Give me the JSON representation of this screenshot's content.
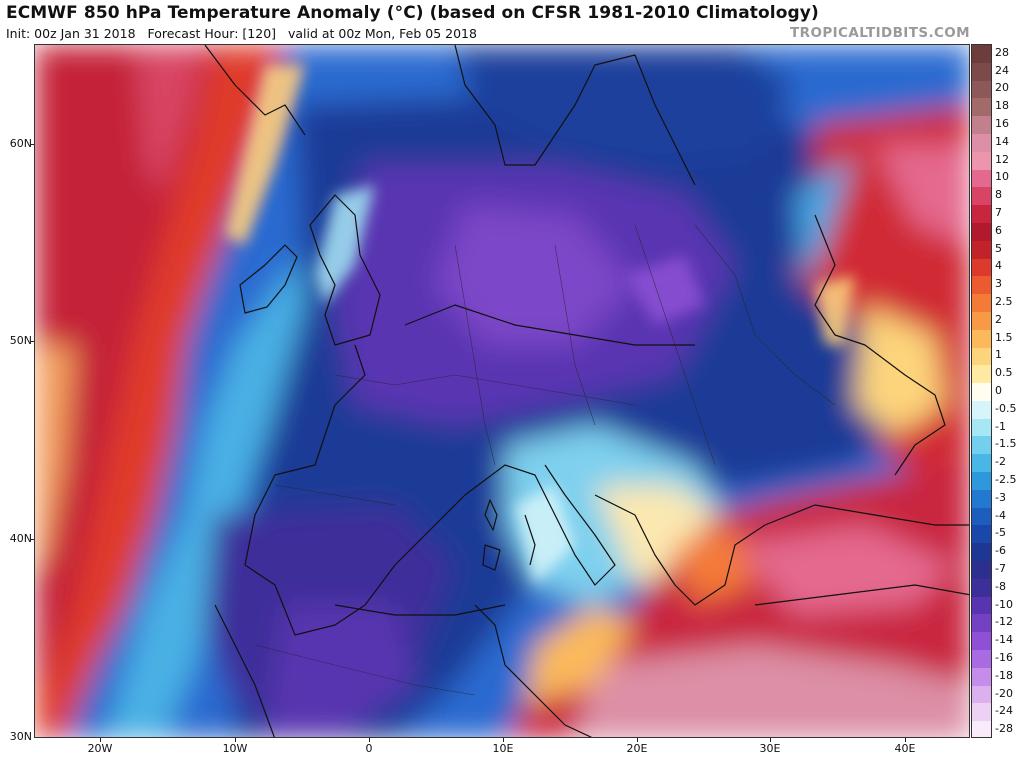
{
  "header": {
    "title": "ECMWF 850 hPa Temperature Anomaly (°C) (based on CFSR 1981-2010 Climatology)",
    "init": "Init: 00z Jan 31 2018",
    "forecast_hour": "Forecast Hour: [120]",
    "valid": "valid at 00z Mon, Feb 05 2018",
    "brand": "TROPICALTIDBITS.COM"
  },
  "axes": {
    "lat_labels": [
      "60N",
      "50N",
      "40N",
      "30N"
    ],
    "lon_labels": [
      "20W",
      "10W",
      "0",
      "10E",
      "20E",
      "30E",
      "40E"
    ]
  },
  "legend": {
    "items": [
      {
        "label": "28",
        "color": "#6d3d3d"
      },
      {
        "label": "24",
        "color": "#7d4a4a"
      },
      {
        "label": "20",
        "color": "#8e5858"
      },
      {
        "label": "18",
        "color": "#a36a6a"
      },
      {
        "label": "16",
        "color": "#c27f8c"
      },
      {
        "label": "14",
        "color": "#dc8fa6"
      },
      {
        "label": "12",
        "color": "#ec95ad"
      },
      {
        "label": "10",
        "color": "#e4698e"
      },
      {
        "label": "8",
        "color": "#d84463"
      },
      {
        "label": "7",
        "color": "#c9253f"
      },
      {
        "label": "6",
        "color": "#b01a2c"
      },
      {
        "label": "5",
        "color": "#c2222a"
      },
      {
        "label": "4",
        "color": "#dc3a2b"
      },
      {
        "label": "3",
        "color": "#ec5b30"
      },
      {
        "label": "2.5",
        "color": "#f47a38"
      },
      {
        "label": "2",
        "color": "#f89945"
      },
      {
        "label": "1.5",
        "color": "#fbb95b"
      },
      {
        "label": "1",
        "color": "#fdd47c"
      },
      {
        "label": "0.5",
        "color": "#feeaa3"
      },
      {
        "label": "0",
        "color": "#fffdf0"
      },
      {
        "label": "-0.5",
        "color": "#d6f4fa"
      },
      {
        "label": "-1",
        "color": "#a6e6f5"
      },
      {
        "label": "-1.5",
        "color": "#72d0ee"
      },
      {
        "label": "-2",
        "color": "#49b6e6"
      },
      {
        "label": "-2.5",
        "color": "#2e98dc"
      },
      {
        "label": "-3",
        "color": "#2379cf"
      },
      {
        "label": "-4",
        "color": "#1d5dbe"
      },
      {
        "label": "-5",
        "color": "#1a47aa"
      },
      {
        "label": "-6",
        "color": "#1e3792"
      },
      {
        "label": "-7",
        "color": "#2d2f8e"
      },
      {
        "label": "-8",
        "color": "#3c2f9a"
      },
      {
        "label": "-10",
        "color": "#5834b0"
      },
      {
        "label": "-12",
        "color": "#7440c4"
      },
      {
        "label": "-14",
        "color": "#8e51d6"
      },
      {
        "label": "-16",
        "color": "#a96be2"
      },
      {
        "label": "-18",
        "color": "#c58de9"
      },
      {
        "label": "-20",
        "color": "#dcb0ef"
      },
      {
        "label": "-24",
        "color": "#ecd1f4"
      },
      {
        "label": "-28",
        "color": "#f8ecfa"
      }
    ]
  },
  "palette": {
    "ocean_base": "#2a62c8",
    "land_border": "#111111"
  }
}
